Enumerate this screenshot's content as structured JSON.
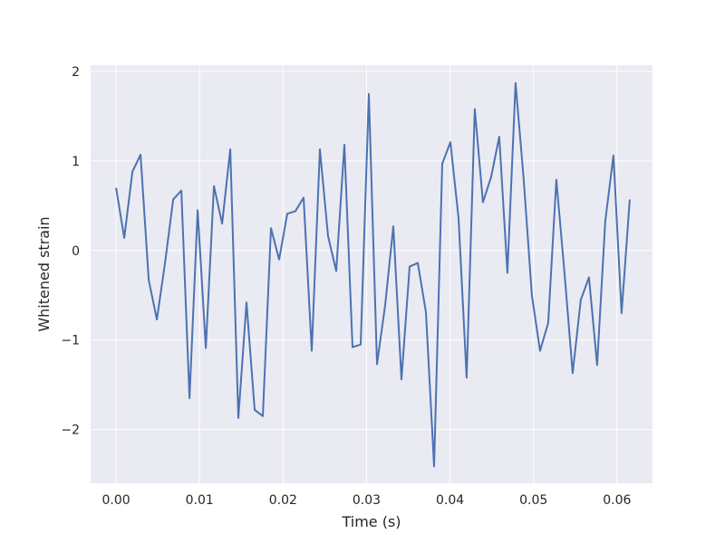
{
  "chart_data": {
    "type": "line",
    "title": "",
    "xlabel": "Time (s)",
    "ylabel": "Whitened strain",
    "xlim": [
      -0.00305,
      0.06425
    ],
    "ylim": [
      -2.6,
      2.07
    ],
    "xticks": [
      0.0,
      0.01,
      0.02,
      0.03,
      0.04,
      0.05,
      0.06
    ],
    "xtick_labels": [
      "0.00",
      "0.01",
      "0.02",
      "0.03",
      "0.04",
      "0.05",
      "0.06"
    ],
    "yticks": [
      -2,
      -1,
      0,
      1,
      2
    ],
    "ytick_labels": [
      "−2",
      "−1",
      "0",
      "1",
      "2"
    ],
    "grid": true,
    "background": "#eaeaf2",
    "grid_color": "#ffffff",
    "line_color": "#4c72b0",
    "series": [
      {
        "x": [
          0.0,
          0.000977,
          0.001953,
          0.00293,
          0.003906,
          0.004883,
          0.005859,
          0.006836,
          0.007812,
          0.008789,
          0.009766,
          0.010742,
          0.011719,
          0.012695,
          0.013672,
          0.014648,
          0.015625,
          0.016602,
          0.017578,
          0.018555,
          0.019531,
          0.020508,
          0.021484,
          0.022461,
          0.023438,
          0.024414,
          0.025391,
          0.026367,
          0.027344,
          0.02832,
          0.029297,
          0.030273,
          0.03125,
          0.032227,
          0.033203,
          0.03418,
          0.035156,
          0.036133,
          0.037109,
          0.038086,
          0.039062,
          0.040039,
          0.041016,
          0.041992,
          0.042969,
          0.043945,
          0.044922,
          0.045898,
          0.046875,
          0.047852,
          0.048828,
          0.049805,
          0.050781,
          0.051758,
          0.052734,
          0.053711,
          0.054688,
          0.055664,
          0.056641,
          0.057617,
          0.058594,
          0.05957,
          0.060547,
          0.061523
        ],
        "y": [
          0.7,
          0.14,
          0.88,
          1.07,
          -0.33,
          -0.77,
          -0.14,
          0.57,
          0.67,
          -1.65,
          0.45,
          -1.09,
          0.72,
          0.3,
          1.13,
          -1.87,
          -0.58,
          -1.78,
          -1.85,
          0.25,
          -0.1,
          0.41,
          0.44,
          0.59,
          -1.12,
          1.13,
          0.16,
          -0.23,
          1.18,
          -1.08,
          -1.05,
          1.75,
          -1.27,
          -0.61,
          0.27,
          -1.44,
          -0.18,
          -0.14,
          -0.69,
          -2.41,
          0.97,
          1.21,
          0.36,
          -1.42,
          1.58,
          0.54,
          0.82,
          1.27,
          -0.25,
          1.87,
          0.79,
          -0.5,
          -1.12,
          -0.81,
          0.79,
          -0.25,
          -1.37,
          -0.55,
          -0.3,
          -1.28,
          0.33,
          1.06,
          -0.7,
          0.57
        ]
      }
    ]
  }
}
